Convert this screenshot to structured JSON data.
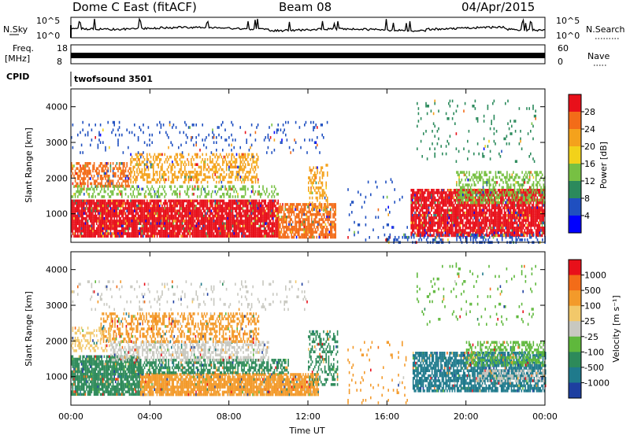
{
  "header": {
    "site": "Dome C East (fitACF)",
    "beam": "Beam 08",
    "date": "04/Apr/2015"
  },
  "nsky_panel": {
    "left_label": "N.Sky",
    "right_label": "N.Search",
    "y_ticks": [
      "10^5",
      "10^0"
    ]
  },
  "freq_panel": {
    "left_label": "Freq.",
    "left_units": "[MHz]",
    "left_ticks": [
      "18",
      "8"
    ],
    "right_label": "Nave",
    "right_ticks": [
      "60",
      "0"
    ]
  },
  "cpid": {
    "label": "CPID",
    "value": "twofsound 3501"
  },
  "chart_data": [
    {
      "type": "heatmap",
      "name": "power",
      "ylabel": "Slant Range [km]",
      "ylim": [
        200,
        4500
      ],
      "y_ticks": [
        "1000",
        "2000",
        "3000",
        "4000"
      ],
      "colorbar": {
        "label": "Power [dB]",
        "ticks": [
          "4",
          "8",
          "12",
          "16",
          "20",
          "24",
          "28"
        ],
        "colors": [
          "#0000ff",
          "#1f4fc0",
          "#2b8a5c",
          "#77c043",
          "#f2d21a",
          "#f4a21c",
          "#f36c18",
          "#e8101a"
        ]
      },
      "regions": [
        {
          "x0": 0.0,
          "x1": 10.5,
          "y0": 400,
          "y1": 1400,
          "color": "#e8101a",
          "density": 0.9
        },
        {
          "x0": 10.5,
          "x1": 13.4,
          "y0": 350,
          "y1": 1300,
          "color": "#f36c18",
          "density": 0.7
        },
        {
          "x0": 0.0,
          "x1": 3.0,
          "y0": 1800,
          "y1": 2450,
          "color": "#f36c18",
          "density": 0.55
        },
        {
          "x0": 3.0,
          "x1": 9.5,
          "y0": 1900,
          "y1": 2700,
          "color": "#f4a21c",
          "density": 0.45
        },
        {
          "x0": 0.0,
          "x1": 10.5,
          "y0": 1450,
          "y1": 1800,
          "color": "#77c043",
          "density": 0.35
        },
        {
          "x0": 0.0,
          "x1": 13.0,
          "y0": 2700,
          "y1": 3600,
          "color": "#1f4fc0",
          "density": 0.08
        },
        {
          "x0": 12.0,
          "x1": 13.0,
          "y0": 1100,
          "y1": 2400,
          "color": "#f4a21c",
          "density": 0.35
        },
        {
          "x0": 17.2,
          "x1": 24.0,
          "y0": 400,
          "y1": 1700,
          "color": "#e8101a",
          "density": 0.85
        },
        {
          "x0": 19.5,
          "x1": 24.0,
          "y0": 1300,
          "y1": 2200,
          "color": "#77c043",
          "density": 0.45
        },
        {
          "x0": 16.0,
          "x1": 24.0,
          "y0": 200,
          "y1": 450,
          "color": "#1f4fc0",
          "density": 0.3
        },
        {
          "x0": 17.5,
          "x1": 23.5,
          "y0": 2500,
          "y1": 4200,
          "color": "#2b8a5c",
          "density": 0.05
        },
        {
          "x0": 14.0,
          "x1": 17.0,
          "y0": 300,
          "y1": 2000,
          "color": "#1f4fc0",
          "density": 0.05
        }
      ]
    },
    {
      "type": "heatmap",
      "name": "velocity",
      "ylabel": "Slant Range [km]",
      "xlabel": "Time UT",
      "x_ticks": [
        "00:00",
        "04:00",
        "08:00",
        "12:00",
        "16:00",
        "20:00",
        "00:00"
      ],
      "xlim": [
        0,
        24
      ],
      "ylim": [
        200,
        4500
      ],
      "y_ticks": [
        "1000",
        "2000",
        "3000",
        "4000"
      ],
      "colorbar": {
        "label": "Velocity [m s⁻¹]",
        "ticks": [
          "1000",
          "500",
          "100",
          "25",
          "-25",
          "-100",
          "-500",
          "-1000"
        ],
        "colors": [
          "#1e3fa0",
          "#1f7a8c",
          "#2d8a5a",
          "#5fb83c",
          "#c8c8c0",
          "#f2c86a",
          "#f39a2a",
          "#f36c18",
          "#e8101a"
        ]
      },
      "regions": [
        {
          "x0": 0.0,
          "x1": 3.5,
          "y0": 500,
          "y1": 1600,
          "color": "#2d8a5a",
          "density": 0.85
        },
        {
          "x0": 3.5,
          "x1": 12.5,
          "y0": 500,
          "y1": 1100,
          "color": "#f39a2a",
          "density": 0.85
        },
        {
          "x0": 3.0,
          "x1": 11.0,
          "y0": 1100,
          "y1": 1500,
          "color": "#2d8a5a",
          "density": 0.6
        },
        {
          "x0": 2.0,
          "x1": 10.0,
          "y0": 1500,
          "y1": 2000,
          "color": "#c8c8c0",
          "density": 0.5
        },
        {
          "x0": 1.5,
          "x1": 9.5,
          "y0": 2000,
          "y1": 2800,
          "color": "#f39a2a",
          "density": 0.45
        },
        {
          "x0": 0.0,
          "x1": 2.0,
          "y0": 1700,
          "y1": 2400,
          "color": "#f2c86a",
          "density": 0.35
        },
        {
          "x0": 0.0,
          "x1": 12.0,
          "y0": 2900,
          "y1": 3700,
          "color": "#c8c8c0",
          "density": 0.08
        },
        {
          "x0": 12.0,
          "x1": 13.5,
          "y0": 800,
          "y1": 2300,
          "color": "#2d8a5a",
          "density": 0.4
        },
        {
          "x0": 17.3,
          "x1": 24.0,
          "y0": 600,
          "y1": 1700,
          "color": "#1f7a8c",
          "density": 0.75
        },
        {
          "x0": 20.0,
          "x1": 24.0,
          "y0": 1300,
          "y1": 2000,
          "color": "#5fb83c",
          "density": 0.45
        },
        {
          "x0": 20.5,
          "x1": 24.0,
          "y0": 850,
          "y1": 1200,
          "color": "#c8c8c0",
          "density": 0.4
        },
        {
          "x0": 14.0,
          "x1": 17.0,
          "y0": 300,
          "y1": 2000,
          "color": "#f39a2a",
          "density": 0.05
        },
        {
          "x0": 17.5,
          "x1": 23.5,
          "y0": 2500,
          "y1": 4200,
          "color": "#5fb83c",
          "density": 0.05
        }
      ]
    }
  ]
}
